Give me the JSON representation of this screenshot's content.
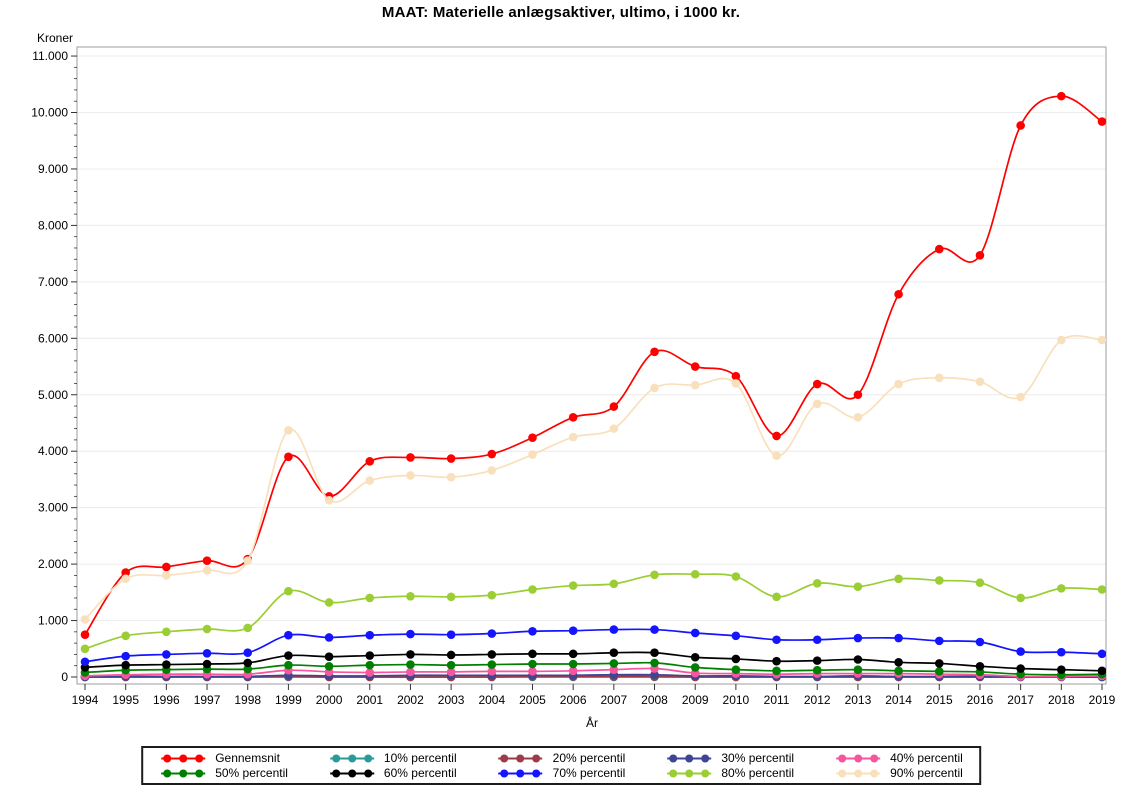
{
  "chart_data": {
    "type": "line",
    "title": "MAAT: Materielle anlægsaktiver, ultimo, i 1000 kr.",
    "ylabel": "Kroner",
    "xlabel": "År",
    "ylim": [
      0,
      11000
    ],
    "y_tick_labels": [
      "0",
      "1.000",
      "2.000",
      "3.000",
      "4.000",
      "5.000",
      "6.000",
      "7.000",
      "8.000",
      "9.000",
      "10.000",
      "11.000"
    ],
    "grid": "horizontal",
    "legend_position": "bottom",
    "marker": "circle",
    "x": [
      1994,
      1995,
      1996,
      1997,
      1998,
      1999,
      2000,
      2001,
      2002,
      2003,
      2004,
      2005,
      2006,
      2007,
      2008,
      2009,
      2010,
      2011,
      2012,
      2013,
      2014,
      2015,
      2016,
      2017,
      2018,
      2019
    ],
    "series": [
      {
        "name": "Gennemsnit",
        "color": "#ff0000",
        "values": [
          750,
          1850,
          1950,
          2060,
          2090,
          3900,
          3200,
          3820,
          3890,
          3870,
          3950,
          4240,
          4600,
          4790,
          5760,
          5500,
          5330,
          4270,
          5190,
          5000,
          6780,
          7580,
          7470,
          9770,
          10290,
          9840
        ]
      },
      {
        "name": "10% percentil",
        "color": "#2b9a9a",
        "values": [
          0,
          0,
          0,
          0,
          0,
          0,
          0,
          0,
          0,
          0,
          0,
          0,
          0,
          0,
          0,
          0,
          0,
          0,
          0,
          0,
          0,
          0,
          0,
          0,
          0,
          0
        ]
      },
      {
        "name": "20% percentil",
        "color": "#9e3b48",
        "values": [
          0,
          0,
          0,
          0,
          0,
          10,
          0,
          0,
          0,
          0,
          0,
          10,
          10,
          10,
          10,
          0,
          0,
          0,
          0,
          0,
          0,
          0,
          0,
          0,
          0,
          0
        ]
      },
      {
        "name": "30% percentil",
        "color": "#3f4493",
        "values": [
          0,
          10,
          10,
          10,
          10,
          30,
          20,
          20,
          30,
          30,
          30,
          30,
          30,
          40,
          40,
          20,
          20,
          10,
          10,
          20,
          10,
          10,
          10,
          0,
          0,
          0
        ]
      },
      {
        "name": "40% percentil",
        "color": "#f7559f",
        "values": [
          20,
          40,
          50,
          50,
          50,
          120,
          90,
          80,
          90,
          90,
          100,
          100,
          110,
          130,
          150,
          70,
          60,
          50,
          60,
          60,
          60,
          50,
          40,
          10,
          10,
          20
        ]
      },
      {
        "name": "50% percentil",
        "color": "#008000",
        "values": [
          80,
          120,
          130,
          140,
          140,
          210,
          190,
          210,
          220,
          210,
          220,
          230,
          230,
          240,
          250,
          170,
          130,
          110,
          120,
          130,
          110,
          100,
          90,
          50,
          40,
          50
        ]
      },
      {
        "name": "60% percentil",
        "color": "#000000",
        "values": [
          170,
          210,
          220,
          230,
          250,
          380,
          360,
          380,
          400,
          390,
          400,
          410,
          410,
          430,
          430,
          350,
          320,
          280,
          290,
          310,
          260,
          240,
          190,
          150,
          130,
          110
        ]
      },
      {
        "name": "70% percentil",
        "color": "#1414ff",
        "values": [
          270,
          370,
          400,
          420,
          430,
          740,
          700,
          740,
          760,
          750,
          770,
          810,
          820,
          840,
          840,
          780,
          730,
          660,
          660,
          690,
          690,
          640,
          620,
          450,
          440,
          410
        ]
      },
      {
        "name": "80% percentil",
        "color": "#9bcd35",
        "values": [
          500,
          730,
          800,
          850,
          870,
          1520,
          1320,
          1400,
          1430,
          1420,
          1450,
          1550,
          1620,
          1650,
          1810,
          1820,
          1780,
          1420,
          1660,
          1600,
          1740,
          1710,
          1670,
          1400,
          1570,
          1550
        ]
      },
      {
        "name": "90% percentil",
        "color": "#f9e0bc",
        "values": [
          1020,
          1740,
          1800,
          1890,
          2060,
          4370,
          3130,
          3480,
          3570,
          3540,
          3660,
          3940,
          4250,
          4400,
          5120,
          5170,
          5200,
          3920,
          4840,
          4600,
          5190,
          5300,
          5230,
          4960,
          5970,
          5970
        ]
      }
    ]
  }
}
